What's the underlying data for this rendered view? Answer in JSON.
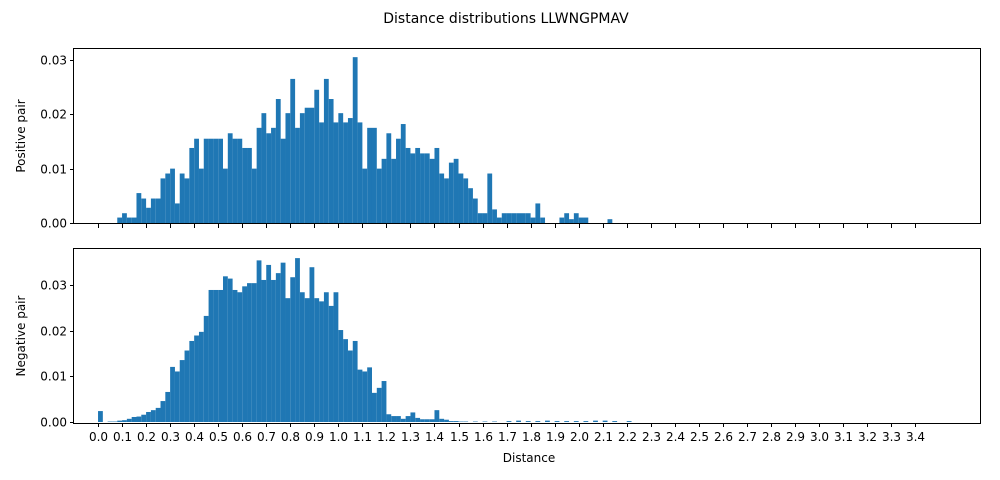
{
  "chart_data": {
    "type": "bar",
    "title": "Distance distributions LLWNGPMAV",
    "xlabel": "Distance",
    "bin_width": 0.02,
    "xlim": [
      -0.1,
      3.67
    ],
    "xticks": [
      0.0,
      0.1,
      0.2,
      0.3,
      0.4,
      0.5,
      0.6,
      0.7,
      0.8,
      0.9,
      1.0,
      1.1,
      1.2,
      1.3,
      1.4,
      1.5,
      1.6,
      1.7,
      1.8,
      1.9,
      2.0,
      2.1,
      2.2,
      2.3,
      2.4,
      2.5,
      2.6,
      2.7,
      2.8,
      2.9,
      3.0,
      3.1,
      3.2,
      3.3,
      3.4
    ],
    "xtick_labels": [
      "0.0",
      "0.1",
      "0.2",
      "0.3",
      "0.4",
      "0.5",
      "0.6",
      "0.7",
      "0.8",
      "0.9",
      "1.0",
      "1.1",
      "1.2",
      "1.3",
      "1.4",
      "1.5",
      "1.6",
      "1.7",
      "1.8",
      "1.9",
      "2.0",
      "2.1",
      "2.2",
      "2.3",
      "2.4",
      "2.5",
      "2.6",
      "2.7",
      "2.8",
      "2.9",
      "3.0",
      "3.1",
      "3.2",
      "3.3",
      "3.4"
    ],
    "panels": [
      {
        "name": "positive",
        "ylabel": "Positive pair",
        "ylim": [
          0,
          0.032
        ],
        "yticks": [
          0.0,
          0.01,
          0.02,
          0.03
        ],
        "ytick_labels": [
          "0.00",
          "0.01",
          "0.02",
          "0.03"
        ],
        "show_xtick_labels": false,
        "bins": [
          [
            0.08,
            0.001
          ],
          [
            0.1,
            0.0018
          ],
          [
            0.12,
            0.001
          ],
          [
            0.14,
            0.001
          ],
          [
            0.16,
            0.0055
          ],
          [
            0.18,
            0.0045
          ],
          [
            0.2,
            0.0028
          ],
          [
            0.22,
            0.0045
          ],
          [
            0.24,
            0.0045
          ],
          [
            0.26,
            0.0082
          ],
          [
            0.28,
            0.0091
          ],
          [
            0.3,
            0.01
          ],
          [
            0.32,
            0.0036
          ],
          [
            0.34,
            0.0091
          ],
          [
            0.36,
            0.0082
          ],
          [
            0.38,
            0.0138
          ],
          [
            0.4,
            0.0155
          ],
          [
            0.42,
            0.01
          ],
          [
            0.44,
            0.0155
          ],
          [
            0.46,
            0.0155
          ],
          [
            0.48,
            0.0155
          ],
          [
            0.5,
            0.0155
          ],
          [
            0.52,
            0.01
          ],
          [
            0.54,
            0.0165
          ],
          [
            0.56,
            0.0155
          ],
          [
            0.58,
            0.0155
          ],
          [
            0.6,
            0.0138
          ],
          [
            0.62,
            0.0138
          ],
          [
            0.64,
            0.01
          ],
          [
            0.66,
            0.0175
          ],
          [
            0.68,
            0.0202
          ],
          [
            0.7,
            0.0165
          ],
          [
            0.72,
            0.0175
          ],
          [
            0.74,
            0.0228
          ],
          [
            0.76,
            0.0155
          ],
          [
            0.78,
            0.0202
          ],
          [
            0.8,
            0.0265
          ],
          [
            0.82,
            0.0175
          ],
          [
            0.84,
            0.0202
          ],
          [
            0.86,
            0.0212
          ],
          [
            0.88,
            0.0212
          ],
          [
            0.9,
            0.0245
          ],
          [
            0.92,
            0.0185
          ],
          [
            0.94,
            0.0265
          ],
          [
            0.96,
            0.0228
          ],
          [
            0.98,
            0.0185
          ],
          [
            1.0,
            0.0202
          ],
          [
            1.02,
            0.0185
          ],
          [
            1.04,
            0.0193
          ],
          [
            1.06,
            0.0305
          ],
          [
            1.08,
            0.0185
          ],
          [
            1.1,
            0.01
          ],
          [
            1.12,
            0.0175
          ],
          [
            1.14,
            0.0175
          ],
          [
            1.16,
            0.01
          ],
          [
            1.18,
            0.0118
          ],
          [
            1.2,
            0.0165
          ],
          [
            1.22,
            0.0118
          ],
          [
            1.24,
            0.0155
          ],
          [
            1.26,
            0.0182
          ],
          [
            1.28,
            0.0138
          ],
          [
            1.3,
            0.0128
          ],
          [
            1.32,
            0.0138
          ],
          [
            1.34,
            0.0128
          ],
          [
            1.36,
            0.0128
          ],
          [
            1.38,
            0.0118
          ],
          [
            1.4,
            0.0138
          ],
          [
            1.42,
            0.0091
          ],
          [
            1.44,
            0.0082
          ],
          [
            1.46,
            0.0111
          ],
          [
            1.48,
            0.0118
          ],
          [
            1.5,
            0.0091
          ],
          [
            1.52,
            0.0082
          ],
          [
            1.54,
            0.0064
          ],
          [
            1.56,
            0.0045
          ],
          [
            1.58,
            0.0018
          ],
          [
            1.6,
            0.0018
          ],
          [
            1.62,
            0.0091
          ],
          [
            1.64,
            0.0025
          ],
          [
            1.66,
            0.001
          ],
          [
            1.68,
            0.0018
          ],
          [
            1.7,
            0.0018
          ],
          [
            1.72,
            0.0018
          ],
          [
            1.74,
            0.0018
          ],
          [
            1.76,
            0.0018
          ],
          [
            1.78,
            0.0018
          ],
          [
            1.8,
            0.001
          ],
          [
            1.82,
            0.0036
          ],
          [
            1.84,
            0.001
          ],
          [
            1.92,
            0.001
          ],
          [
            1.94,
            0.0018
          ],
          [
            1.96,
            0.0007
          ],
          [
            1.98,
            0.0018
          ],
          [
            2.0,
            0.001
          ],
          [
            2.02,
            0.001
          ],
          [
            2.12,
            0.0007
          ]
        ]
      },
      {
        "name": "negative",
        "ylabel": "Negative pair",
        "ylim": [
          0,
          0.038
        ],
        "yticks": [
          0.0,
          0.01,
          0.02,
          0.03
        ],
        "ytick_labels": [
          "0.00",
          "0.01",
          "0.02",
          "0.03"
        ],
        "show_xtick_labels": true,
        "bins": [
          [
            0.0,
            0.0024
          ],
          [
            0.04,
            0.0001
          ],
          [
            0.06,
            0.0001
          ],
          [
            0.08,
            0.0003
          ],
          [
            0.1,
            0.0004
          ],
          [
            0.12,
            0.0007
          ],
          [
            0.14,
            0.0011
          ],
          [
            0.16,
            0.0012
          ],
          [
            0.18,
            0.0016
          ],
          [
            0.2,
            0.0022
          ],
          [
            0.22,
            0.0026
          ],
          [
            0.24,
            0.0031
          ],
          [
            0.26,
            0.0046
          ],
          [
            0.28,
            0.0066
          ],
          [
            0.3,
            0.0121
          ],
          [
            0.32,
            0.0111
          ],
          [
            0.34,
            0.0136
          ],
          [
            0.36,
            0.0157
          ],
          [
            0.38,
            0.0178
          ],
          [
            0.4,
            0.019
          ],
          [
            0.42,
            0.0198
          ],
          [
            0.44,
            0.0233
          ],
          [
            0.46,
            0.029
          ],
          [
            0.48,
            0.029
          ],
          [
            0.5,
            0.029
          ],
          [
            0.52,
            0.032
          ],
          [
            0.54,
            0.0315
          ],
          [
            0.56,
            0.029
          ],
          [
            0.58,
            0.0285
          ],
          [
            0.6,
            0.0298
          ],
          [
            0.62,
            0.0305
          ],
          [
            0.64,
            0.0305
          ],
          [
            0.66,
            0.0355
          ],
          [
            0.68,
            0.0312
          ],
          [
            0.7,
            0.0345
          ],
          [
            0.72,
            0.0312
          ],
          [
            0.74,
            0.0327
          ],
          [
            0.76,
            0.035
          ],
          [
            0.78,
            0.0272
          ],
          [
            0.8,
            0.0318
          ],
          [
            0.82,
            0.036
          ],
          [
            0.84,
            0.0285
          ],
          [
            0.86,
            0.0272
          ],
          [
            0.88,
            0.034
          ],
          [
            0.9,
            0.0272
          ],
          [
            0.92,
            0.0265
          ],
          [
            0.94,
            0.0285
          ],
          [
            0.96,
            0.0255
          ],
          [
            0.98,
            0.0285
          ],
          [
            1.0,
            0.0202
          ],
          [
            1.02,
            0.0182
          ],
          [
            1.04,
            0.0157
          ],
          [
            1.06,
            0.0178
          ],
          [
            1.08,
            0.0115
          ],
          [
            1.1,
            0.0111
          ],
          [
            1.12,
            0.012
          ],
          [
            1.14,
            0.0064
          ],
          [
            1.16,
            0.0075
          ],
          [
            1.18,
            0.009
          ],
          [
            1.2,
            0.0017
          ],
          [
            1.22,
            0.0013
          ],
          [
            1.24,
            0.0013
          ],
          [
            1.26,
            0.0007
          ],
          [
            1.28,
            0.0013
          ],
          [
            1.3,
            0.0021
          ],
          [
            1.32,
            0.0009
          ],
          [
            1.34,
            0.0006
          ],
          [
            1.36,
            0.0006
          ],
          [
            1.38,
            0.0006
          ],
          [
            1.4,
            0.0026
          ],
          [
            1.42,
            0.0007
          ],
          [
            1.44,
            0.0005
          ],
          [
            1.46,
            0.0002
          ],
          [
            1.48,
            0.0002
          ],
          [
            1.5,
            0.0001
          ],
          [
            1.52,
            0.0001
          ],
          [
            1.56,
            0.0001
          ],
          [
            1.6,
            0.0001
          ],
          [
            1.64,
            0.0001
          ],
          [
            1.7,
            0.0002
          ],
          [
            1.74,
            0.0003
          ],
          [
            1.78,
            0.0002
          ],
          [
            1.82,
            0.0002
          ],
          [
            1.86,
            0.0003
          ],
          [
            1.9,
            0.0002
          ],
          [
            1.94,
            0.0002
          ],
          [
            1.98,
            0.0002
          ],
          [
            2.02,
            0.0002
          ],
          [
            2.06,
            0.0003
          ],
          [
            2.1,
            0.0003
          ],
          [
            2.14,
            0.0002
          ],
          [
            2.2,
            0.0002
          ]
        ]
      }
    ]
  }
}
